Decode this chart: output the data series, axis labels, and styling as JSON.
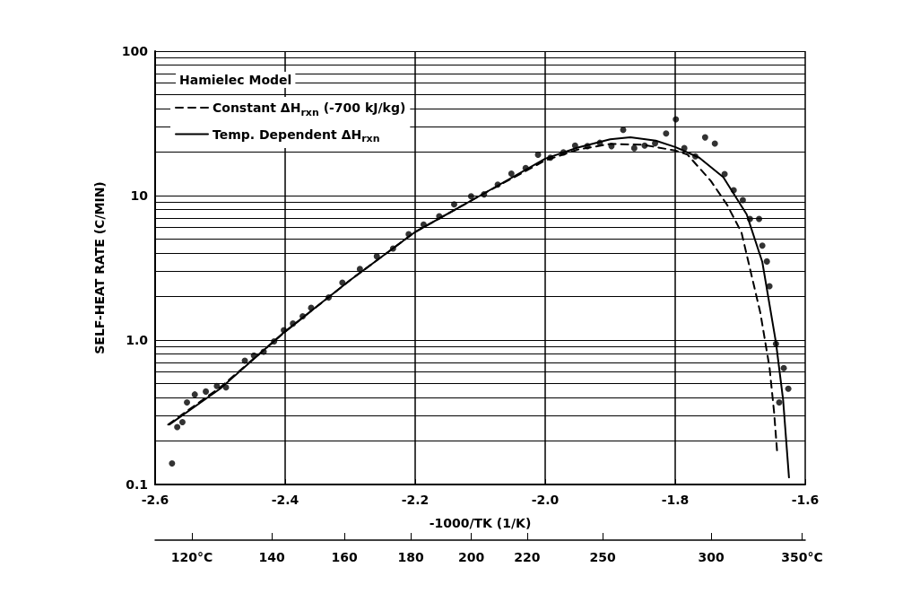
{
  "chart_data": {
    "type": "scatter",
    "xlabel": "-1000/TK (1/K)",
    "ylabel": "SELF-HEAT RATE (C/MIN)",
    "legend_title": "Hamielec Model",
    "xlim": [
      -2.6,
      -1.6
    ],
    "xticks": [
      -2.6,
      -2.4,
      -2.2,
      {
        "value": -2.0,
        "label": "-2.0"
      },
      -1.8,
      -1.6
    ],
    "annotations": [
      "120°C",
      "140",
      "160",
      "180",
      "200",
      "220",
      "250",
      "300",
      "350°C"
    ],
    "ylim": [
      0.1,
      100
    ],
    "log": "y",
    "grid": true,
    "legend": "top left",
    "marker": "circle",
    "yticks": [
      {
        "value": 0.1,
        "label": "0.1"
      },
      {
        "value": 0.2,
        "label": null
      },
      {
        "value": 0.3,
        "label": null
      },
      {
        "value": 0.4,
        "label": null
      },
      {
        "value": 0.5,
        "label": null
      },
      {
        "value": 0.6,
        "label": null
      },
      {
        "value": 0.7,
        "label": null
      },
      {
        "value": 0.8,
        "label": null
      },
      {
        "value": 0.9,
        "label": null
      },
      {
        "value": 1,
        "label": "1.0"
      },
      {
        "value": 2,
        "label": null
      },
      {
        "value": 3,
        "label": null
      },
      {
        "value": 4,
        "label": null
      },
      {
        "value": 5,
        "label": null
      },
      {
        "value": 6,
        "label": null
      },
      {
        "value": 7,
        "label": null
      },
      {
        "value": 8,
        "label": null
      },
      {
        "value": 9,
        "label": null
      },
      {
        "value": 10,
        "label": "10"
      },
      {
        "value": 20,
        "label": null
      },
      {
        "value": 30,
        "label": null
      },
      {
        "value": 40,
        "label": null
      },
      {
        "value": 50,
        "label": null
      },
      {
        "value": 60,
        "label": null
      },
      {
        "value": 70,
        "label": null
      },
      {
        "value": 80,
        "label": null
      },
      {
        "value": 90,
        "label": null
      },
      {
        "value": 100,
        "label": "100"
      }
    ],
    "series": [
      {
        "color": "#000000",
        "x": [
          -2.574,
          -2.566,
          -2.558,
          -2.551,
          -2.539,
          -2.522,
          -2.505,
          -2.491,
          -2.462,
          -2.448,
          -2.433,
          -2.417,
          -2.402,
          -2.388,
          -2.373,
          -2.36,
          -2.333,
          -2.312,
          -2.285,
          -2.259,
          -2.234,
          -2.21,
          -2.187,
          -2.163,
          -2.14,
          -2.114,
          -2.094,
          -2.073,
          -2.052,
          -2.03,
          -2.011,
          -1.992,
          -1.972,
          -1.954,
          -1.935,
          -1.916,
          -1.898,
          -1.88,
          -1.863,
          -1.847,
          -1.831,
          -1.814,
          -1.799,
          -1.786,
          -1.769,
          -1.754,
          -1.739,
          -1.724,
          -1.71,
          -1.696,
          -1.685,
          -1.671,
          -1.666,
          -1.659,
          -1.655,
          -1.645,
          -1.64,
          -1.633,
          -1.626
        ],
        "values": [
          0.14,
          0.25,
          0.27,
          0.37,
          0.42,
          0.44,
          0.48,
          0.47,
          0.72,
          0.78,
          0.83,
          0.98,
          1.17,
          1.3,
          1.46,
          1.67,
          1.97,
          2.5,
          3.1,
          3.8,
          4.3,
          5.4,
          6.3,
          7.2,
          8.7,
          9.9,
          10.2,
          11.9,
          14.2,
          15.5,
          19.2,
          18.3,
          19.9,
          22.2,
          22.0,
          23.2,
          22.0,
          28.5,
          21.3,
          22.2,
          23.0,
          26.9,
          33.7,
          21.3,
          18.7,
          25.3,
          22.9,
          14.1,
          10.9,
          9.3,
          6.9,
          6.9,
          4.5,
          3.5,
          2.36,
          0.94,
          0.37,
          0.64,
          0.46
        ]
      },
      {
        "type": "line",
        "name": "Constant ΔH$_{rxn}$ (-700 kJ/kg)",
        "color": "#000000",
        "line_style": "dashed",
        "marker": "none",
        "x": [
          -2.58,
          -2.5,
          -2.4,
          -2.3,
          -2.2,
          -2.1,
          -2.0,
          -1.95,
          -1.9,
          -1.85,
          -1.8,
          -1.781,
          -1.745,
          -1.72,
          -1.698,
          -1.669,
          -1.655,
          -1.648,
          -1.643
        ],
        "values": [
          0.26,
          0.47,
          1.14,
          2.6,
          5.6,
          10.0,
          17.5,
          20.8,
          22.8,
          22.5,
          20.5,
          19.2,
          12.6,
          8.6,
          5.55,
          1.54,
          0.65,
          0.32,
          0.164
        ]
      },
      {
        "type": "line",
        "name": "Temp. Dependent ΔH$_{rxn}$",
        "color": "#000000",
        "line_style": "solid",
        "marker": "none",
        "x": [
          -2.578,
          -2.5,
          -2.402,
          -2.3,
          -2.2,
          -2.1,
          -2.0,
          -1.95,
          -1.9,
          -1.869,
          -1.83,
          -1.8,
          -1.763,
          -1.726,
          -1.69,
          -1.666,
          -1.645,
          -1.634,
          -1.625
        ],
        "values": [
          0.26,
          0.46,
          1.13,
          2.6,
          5.6,
          10.0,
          18.0,
          21.5,
          24.5,
          25.3,
          24.0,
          21.7,
          18.3,
          13.4,
          7.4,
          3.47,
          0.96,
          0.385,
          0.112
        ]
      }
    ]
  }
}
